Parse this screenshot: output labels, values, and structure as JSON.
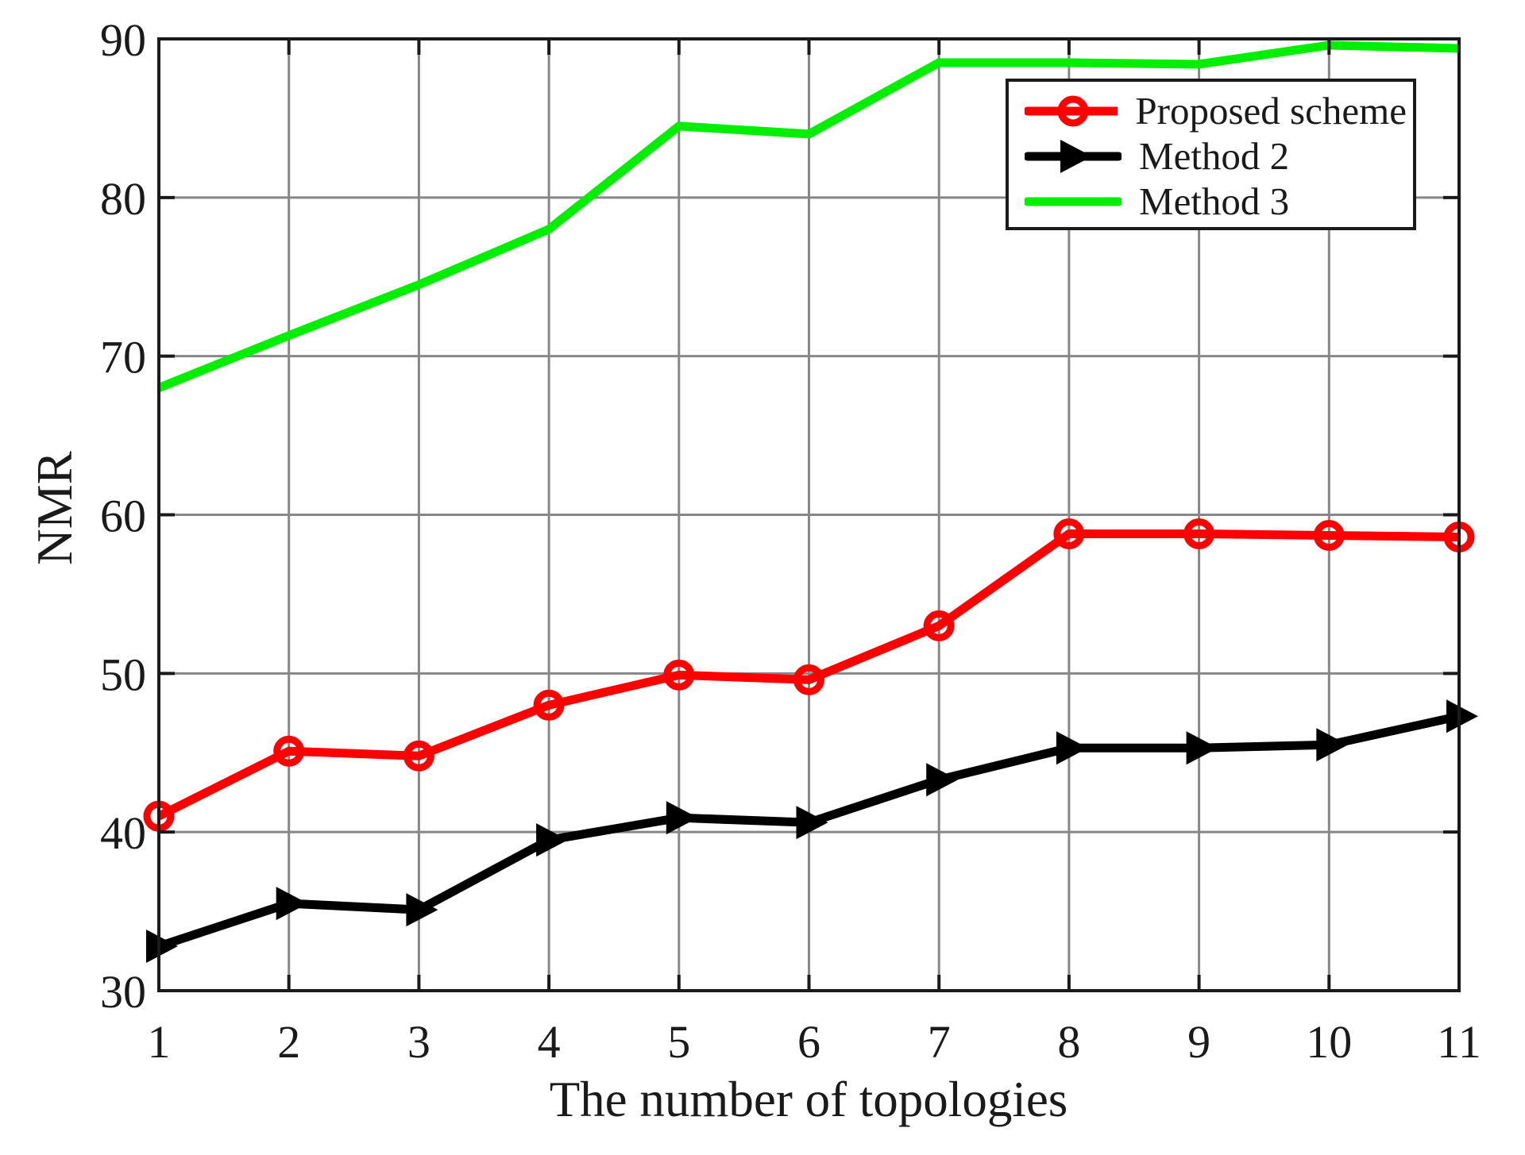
{
  "chart_data": {
    "type": "line",
    "title": "",
    "xlabel": "The number of topologies",
    "ylabel": "NMR",
    "x": [
      1,
      2,
      3,
      4,
      5,
      6,
      7,
      8,
      9,
      10,
      11
    ],
    "xlim": [
      1,
      11
    ],
    "ylim": [
      30,
      90
    ],
    "xticks": [
      1,
      2,
      3,
      4,
      5,
      6,
      7,
      8,
      9,
      10,
      11
    ],
    "yticks": [
      30,
      40,
      50,
      60,
      70,
      80,
      90
    ],
    "grid": true,
    "grid_color": "#878787",
    "axis_color": "#1a1a1a",
    "legend_position": "upper-right-inside",
    "series": [
      {
        "name": "Proposed scheme",
        "color": "#ff0000",
        "marker": "circle",
        "values": [
          41.0,
          45.1,
          44.8,
          48.0,
          49.9,
          49.6,
          53.0,
          58.8,
          58.8,
          58.7,
          58.6
        ]
      },
      {
        "name": "Method 2",
        "color": "#000000",
        "marker": "triangle-right",
        "values": [
          32.8,
          35.5,
          35.1,
          39.5,
          40.9,
          40.6,
          43.3,
          45.3,
          45.3,
          45.5,
          47.3
        ]
      },
      {
        "name": "Method 3",
        "color": "#00ee00",
        "marker": "none",
        "values": [
          68.0,
          71.3,
          74.5,
          78.0,
          84.5,
          84.0,
          88.5,
          88.5,
          88.4,
          89.6,
          89.4
        ]
      }
    ]
  }
}
